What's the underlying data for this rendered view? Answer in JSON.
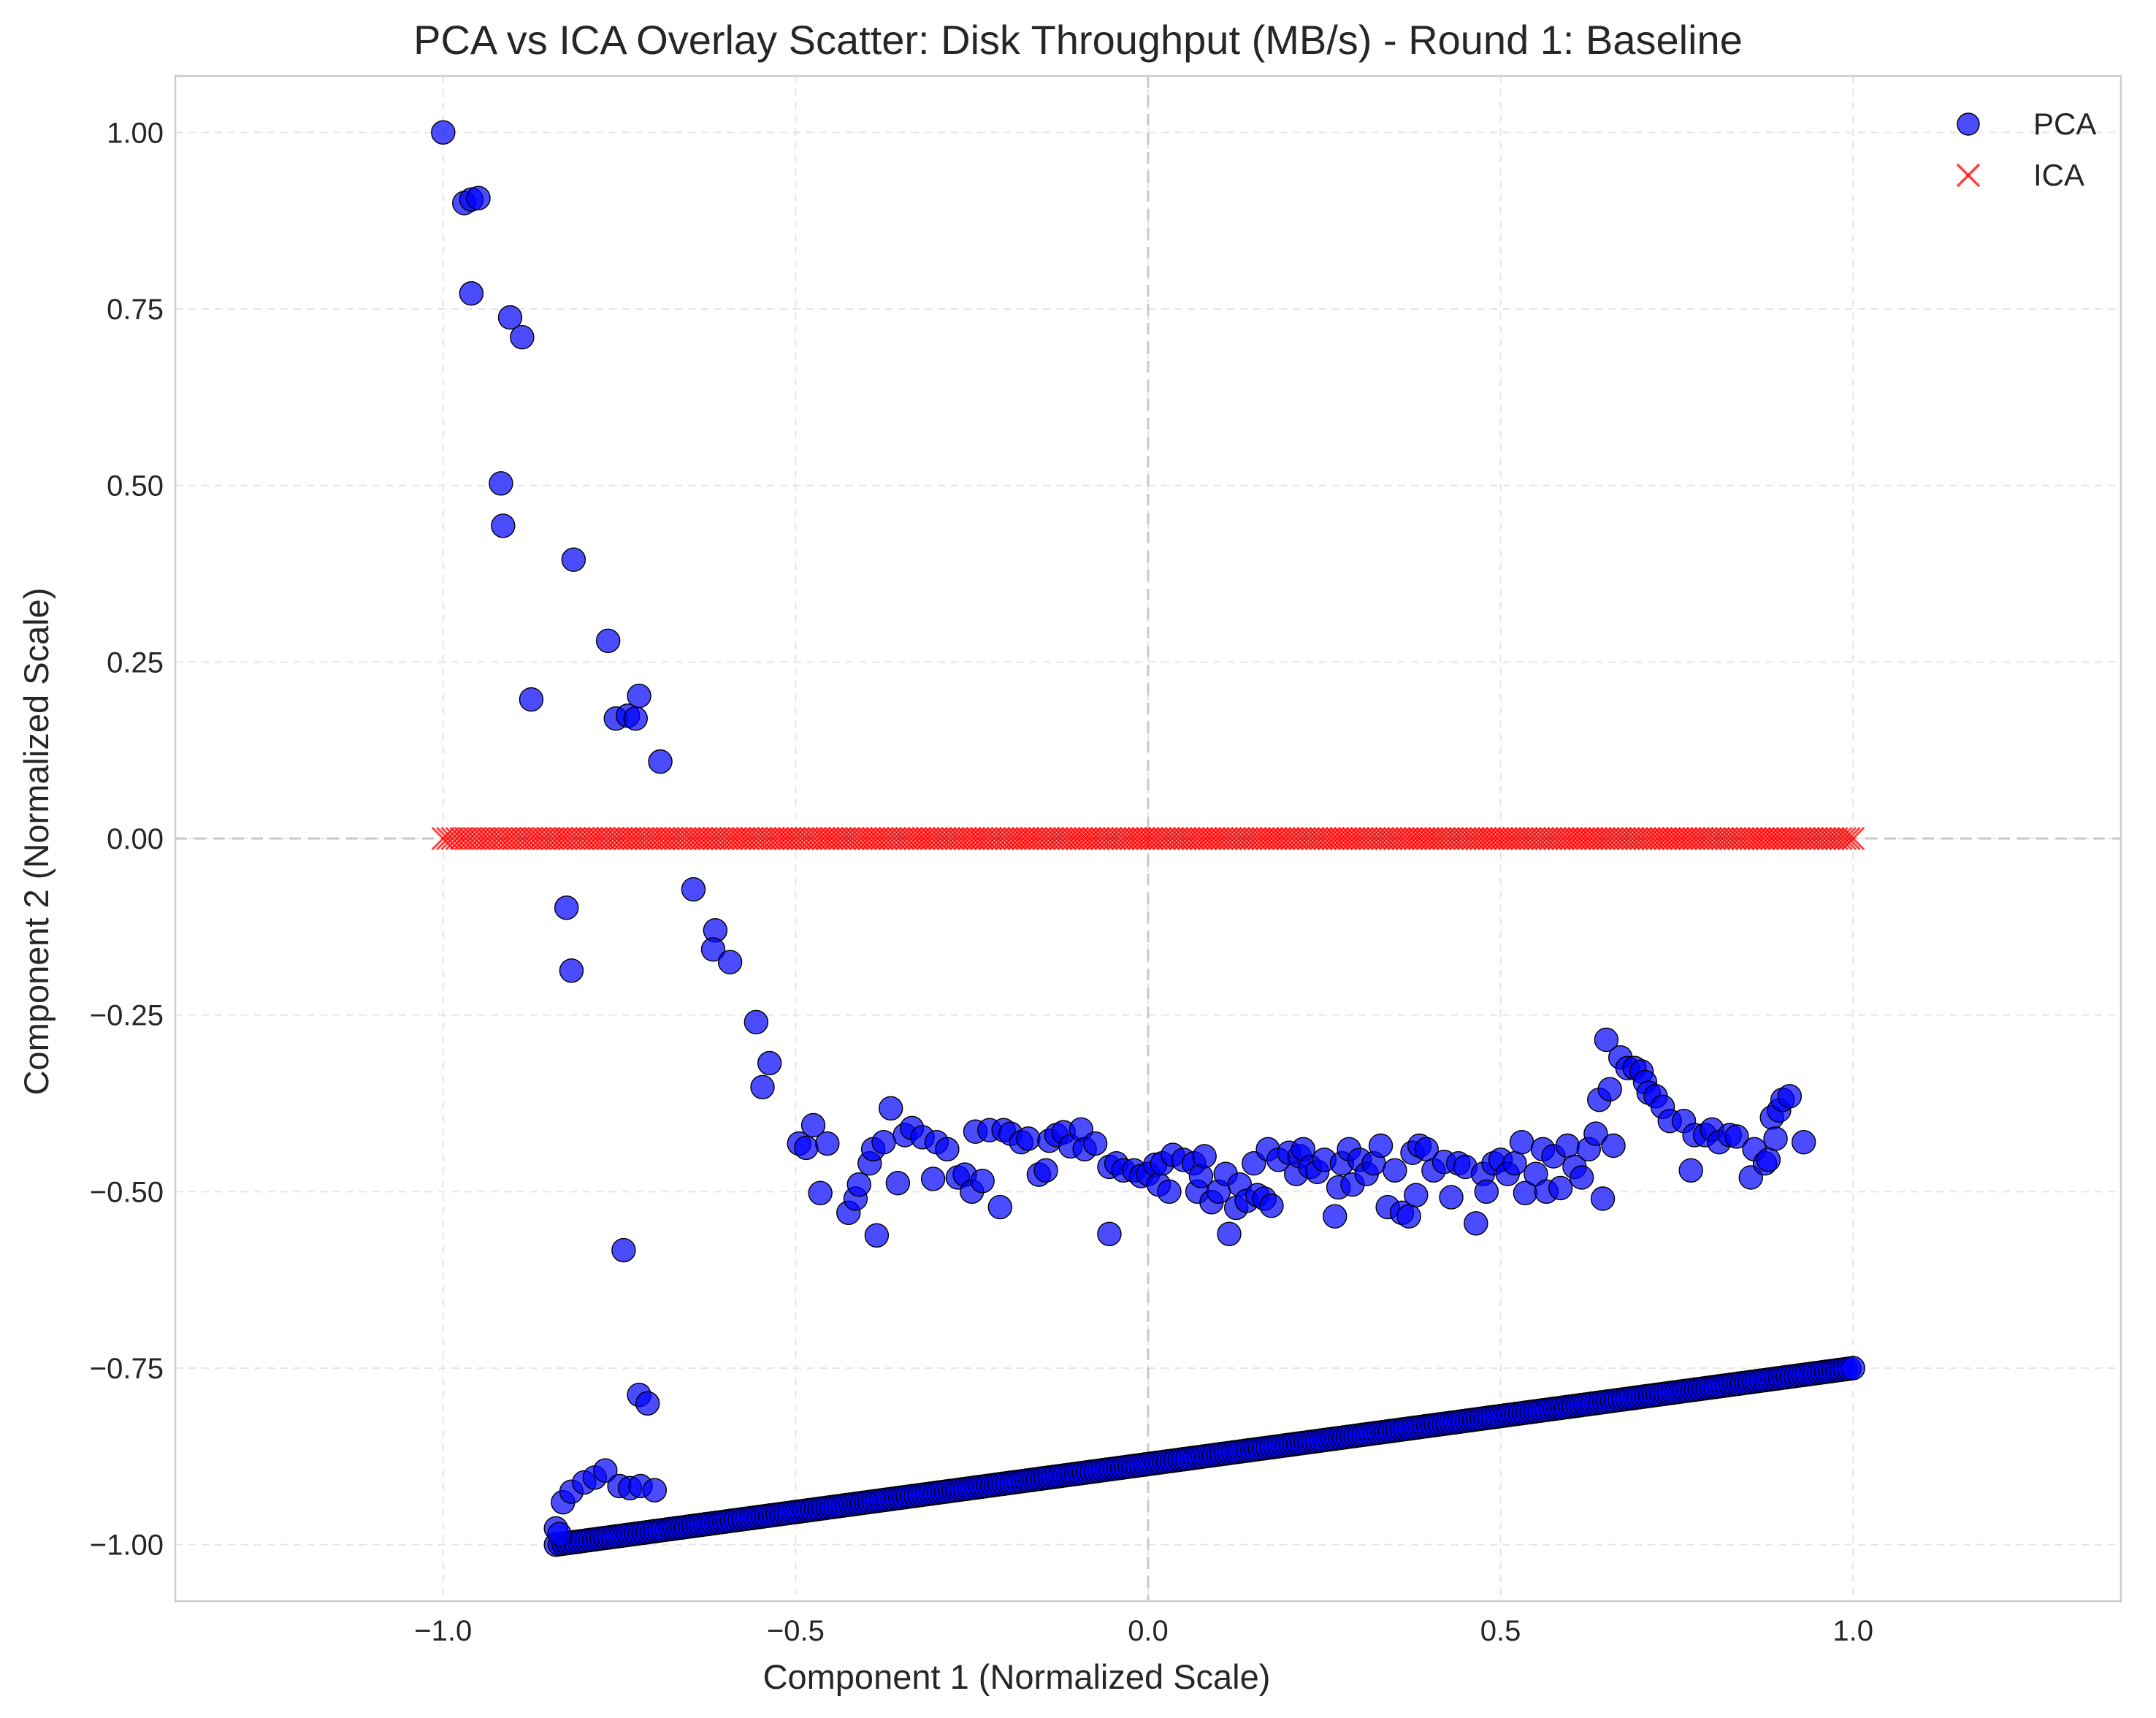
{
  "chart_data": {
    "type": "scatter",
    "title": "PCA vs ICA Overlay Scatter: Disk Throughput (MB/s) - Round 1: Baseline",
    "xlabel": "Component 1 (Normalized Scale)",
    "ylabel": "Component 2 (Normalized Scale)",
    "xlim": [
      -1.38,
      1.38
    ],
    "ylim": [
      -1.08,
      1.08
    ],
    "x_ticks": [
      -1.0,
      -0.5,
      0.0,
      0.5,
      1.0
    ],
    "x_tick_labels": [
      "−1.0",
      "−0.5",
      "0.0",
      "0.5",
      "1.0"
    ],
    "y_ticks": [
      1.0,
      0.75,
      0.5,
      0.25,
      0.0,
      -0.25,
      -0.5,
      -0.75,
      -1.0
    ],
    "y_tick_labels": [
      "1.00",
      "0.75",
      "0.50",
      "0.25",
      "0.00",
      "−0.25",
      "−0.50",
      "−0.75",
      "−1.00"
    ],
    "grid": true,
    "legend_position": "top-right",
    "reference_lines": {
      "x": 0,
      "y": 0
    },
    "colors": {
      "PCA": "#0000ff",
      "ICA": "#ff0000",
      "grid": "#e6e6e6",
      "reference": "#c8c8c8"
    },
    "series": [
      {
        "name": "PCA",
        "marker": "circle",
        "line_segment": {
          "x_start": -0.84,
          "y_start": -1.0,
          "x_end": 1.0,
          "y_end": -0.75,
          "count": 340
        },
        "points": [
          [
            -1.0,
            1.0
          ],
          [
            -0.97,
            0.9
          ],
          [
            -0.96,
            0.905
          ],
          [
            -0.95,
            0.907
          ],
          [
            -0.96,
            0.772
          ],
          [
            -0.905,
            0.738
          ],
          [
            -0.888,
            0.71
          ],
          [
            -0.918,
            0.503
          ],
          [
            -0.915,
            0.443
          ],
          [
            -0.815,
            0.395
          ],
          [
            -0.875,
            0.197
          ],
          [
            -0.766,
            0.28
          ],
          [
            -0.755,
            0.17
          ],
          [
            -0.738,
            0.174
          ],
          [
            -0.727,
            0.17
          ],
          [
            -0.722,
            0.202
          ],
          [
            -0.692,
            0.109
          ],
          [
            -0.825,
            -0.098
          ],
          [
            -0.818,
            -0.187
          ],
          [
            -0.645,
            -0.072
          ],
          [
            -0.614,
            -0.13
          ],
          [
            -0.617,
            -0.157
          ],
          [
            -0.593,
            -0.175
          ],
          [
            -0.556,
            -0.26
          ],
          [
            -0.537,
            -0.318
          ],
          [
            -0.547,
            -0.352
          ],
          [
            -0.744,
            -0.583
          ],
          [
            -0.722,
            -0.788
          ],
          [
            -0.71,
            -0.8
          ],
          [
            -0.84,
            -0.977
          ],
          [
            -0.835,
            -0.985
          ],
          [
            -0.83,
            -0.94
          ],
          [
            -0.818,
            -0.925
          ],
          [
            -0.8,
            -0.912
          ],
          [
            -0.785,
            -0.905
          ],
          [
            -0.77,
            -0.895
          ],
          [
            -0.75,
            -0.917
          ],
          [
            -0.735,
            -0.92
          ],
          [
            -0.72,
            -0.917
          ],
          [
            -0.7,
            -0.923
          ],
          [
            -0.495,
            -0.432
          ],
          [
            -0.485,
            -0.438
          ],
          [
            -0.475,
            -0.406
          ],
          [
            -0.465,
            -0.502
          ],
          [
            -0.455,
            -0.432
          ],
          [
            -0.425,
            -0.53
          ],
          [
            -0.415,
            -0.51
          ],
          [
            -0.41,
            -0.49
          ],
          [
            -0.395,
            -0.46
          ],
          [
            -0.39,
            -0.44
          ],
          [
            -0.385,
            -0.562
          ],
          [
            -0.375,
            -0.43
          ],
          [
            -0.365,
            -0.382
          ],
          [
            -0.355,
            -0.488
          ],
          [
            -0.345,
            -0.42
          ],
          [
            -0.335,
            -0.41
          ],
          [
            -0.32,
            -0.423
          ],
          [
            -0.305,
            -0.482
          ],
          [
            -0.3,
            -0.43
          ],
          [
            -0.285,
            -0.44
          ],
          [
            -0.27,
            -0.48
          ],
          [
            -0.26,
            -0.476
          ],
          [
            -0.25,
            -0.5
          ],
          [
            -0.245,
            -0.415
          ],
          [
            -0.235,
            -0.485
          ],
          [
            -0.225,
            -0.413
          ],
          [
            -0.21,
            -0.522
          ],
          [
            -0.205,
            -0.413
          ],
          [
            -0.195,
            -0.418
          ],
          [
            -0.18,
            -0.43
          ],
          [
            -0.17,
            -0.425
          ],
          [
            -0.155,
            -0.476
          ],
          [
            -0.145,
            -0.47
          ],
          [
            -0.14,
            -0.428
          ],
          [
            -0.13,
            -0.42
          ],
          [
            -0.12,
            -0.416
          ],
          [
            -0.11,
            -0.436
          ],
          [
            -0.095,
            -0.412
          ],
          [
            -0.09,
            -0.44
          ],
          [
            -0.075,
            -0.432
          ],
          [
            -0.055,
            -0.465
          ],
          [
            -0.055,
            -0.56
          ],
          [
            -0.045,
            -0.46
          ],
          [
            -0.035,
            -0.47
          ],
          [
            -0.02,
            -0.47
          ],
          [
            -0.01,
            -0.478
          ],
          [
            0.0,
            -0.475
          ],
          [
            0.01,
            -0.462
          ],
          [
            0.015,
            -0.49
          ],
          [
            0.02,
            -0.46
          ],
          [
            0.03,
            -0.5
          ],
          [
            0.035,
            -0.448
          ],
          [
            0.05,
            -0.455
          ],
          [
            0.065,
            -0.46
          ],
          [
            0.07,
            -0.5
          ],
          [
            0.075,
            -0.478
          ],
          [
            0.08,
            -0.45
          ],
          [
            0.09,
            -0.515
          ],
          [
            0.1,
            -0.5
          ],
          [
            0.11,
            -0.475
          ],
          [
            0.115,
            -0.56
          ],
          [
            0.125,
            -0.523
          ],
          [
            0.13,
            -0.49
          ],
          [
            0.14,
            -0.513
          ],
          [
            0.15,
            -0.46
          ],
          [
            0.155,
            -0.505
          ],
          [
            0.165,
            -0.51
          ],
          [
            0.17,
            -0.44
          ],
          [
            0.175,
            -0.52
          ],
          [
            0.185,
            -0.455
          ],
          [
            0.2,
            -0.445
          ],
          [
            0.21,
            -0.475
          ],
          [
            0.215,
            -0.45
          ],
          [
            0.22,
            -0.44
          ],
          [
            0.23,
            -0.465
          ],
          [
            0.24,
            -0.472
          ],
          [
            0.25,
            -0.455
          ],
          [
            0.265,
            -0.535
          ],
          [
            0.27,
            -0.494
          ],
          [
            0.275,
            -0.46
          ],
          [
            0.285,
            -0.44
          ],
          [
            0.29,
            -0.49
          ],
          [
            0.3,
            -0.455
          ],
          [
            0.31,
            -0.475
          ],
          [
            0.32,
            -0.46
          ],
          [
            0.33,
            -0.435
          ],
          [
            0.34,
            -0.522
          ],
          [
            0.35,
            -0.47
          ],
          [
            0.36,
            -0.53
          ],
          [
            0.37,
            -0.535
          ],
          [
            0.375,
            -0.445
          ],
          [
            0.38,
            -0.505
          ],
          [
            0.385,
            -0.435
          ],
          [
            0.395,
            -0.44
          ],
          [
            0.405,
            -0.47
          ],
          [
            0.42,
            -0.458
          ],
          [
            0.43,
            -0.508
          ],
          [
            0.44,
            -0.46
          ],
          [
            0.45,
            -0.465
          ],
          [
            0.465,
            -0.545
          ],
          [
            0.475,
            -0.475
          ],
          [
            0.48,
            -0.5
          ],
          [
            0.49,
            -0.46
          ],
          [
            0.5,
            -0.455
          ],
          [
            0.51,
            -0.475
          ],
          [
            0.52,
            -0.46
          ],
          [
            0.53,
            -0.43
          ],
          [
            0.535,
            -0.502
          ],
          [
            0.55,
            -0.475
          ],
          [
            0.56,
            -0.44
          ],
          [
            0.565,
            -0.5
          ],
          [
            0.575,
            -0.45
          ],
          [
            0.585,
            -0.495
          ],
          [
            0.595,
            -0.435
          ],
          [
            0.605,
            -0.465
          ],
          [
            0.615,
            -0.48
          ],
          [
            0.625,
            -0.44
          ],
          [
            0.635,
            -0.418
          ],
          [
            0.64,
            -0.37
          ],
          [
            0.645,
            -0.51
          ],
          [
            0.65,
            -0.285
          ],
          [
            0.655,
            -0.355
          ],
          [
            0.66,
            -0.435
          ],
          [
            0.67,
            -0.31
          ],
          [
            0.68,
            -0.325
          ],
          [
            0.69,
            -0.325
          ],
          [
            0.7,
            -0.33
          ],
          [
            0.705,
            -0.345
          ],
          [
            0.71,
            -0.36
          ],
          [
            0.72,
            -0.365
          ],
          [
            0.73,
            -0.38
          ],
          [
            0.74,
            -0.4
          ],
          [
            0.76,
            -0.4
          ],
          [
            0.77,
            -0.47
          ],
          [
            0.775,
            -0.42
          ],
          [
            0.79,
            -0.42
          ],
          [
            0.8,
            -0.412
          ],
          [
            0.81,
            -0.43
          ],
          [
            0.825,
            -0.42
          ],
          [
            0.835,
            -0.422
          ],
          [
            0.855,
            -0.48
          ],
          [
            0.86,
            -0.44
          ],
          [
            0.875,
            -0.46
          ],
          [
            0.88,
            -0.455
          ],
          [
            0.885,
            -0.395
          ],
          [
            0.89,
            -0.425
          ],
          [
            0.895,
            -0.385
          ],
          [
            0.9,
            -0.37
          ],
          [
            0.91,
            -0.365
          ],
          [
            0.93,
            -0.43
          ]
        ]
      },
      {
        "name": "ICA",
        "marker": "x",
        "y_value": 0.0,
        "x_range": [
          -1.0,
          1.0
        ],
        "count": 340
      }
    ]
  }
}
